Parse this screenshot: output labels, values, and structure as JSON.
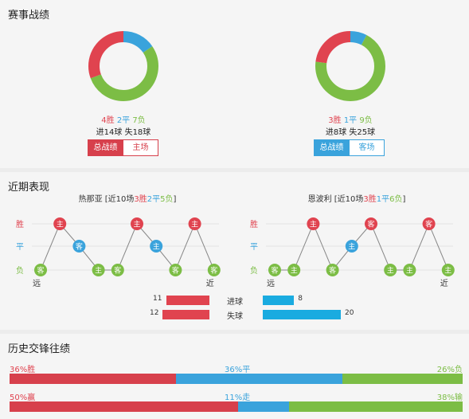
{
  "record": {
    "title": "赛事战绩",
    "teams": [
      {
        "win": 4,
        "draw": 2,
        "loss": 7,
        "win_label": "4胜",
        "draw_label": "2平",
        "loss_label": "7负",
        "goals_line": "进14球 失18球",
        "btn_total": "总战绩",
        "btn_venue": "主场",
        "accent": "#d7404c"
      },
      {
        "win": 3,
        "draw": 1,
        "loss": 9,
        "win_label": "3胜",
        "draw_label": "1平",
        "loss_label": "9负",
        "goals_line": "进8球 失25球",
        "btn_total": "总战绩",
        "btn_venue": "客场",
        "accent": "#3aa3dc"
      }
    ],
    "colors": {
      "win": "#e0434f",
      "draw": "#3aa3dc",
      "loss": "#7cbd45"
    }
  },
  "recent": {
    "title": "近期表现",
    "axis": {
      "win": "胜",
      "draw": "平",
      "loss": "负",
      "far": "远",
      "near": "近"
    },
    "teams": [
      {
        "title_prefix": "热那亚 [近10场",
        "win_part": "3胜",
        "draw_part": "2平",
        "loss_part": "5负",
        "title_suffix": "]",
        "results": [
          "负",
          "胜",
          "平",
          "负",
          "负",
          "胜",
          "平",
          "负",
          "胜",
          "负"
        ],
        "venues": [
          "客",
          "主",
          "客",
          "主",
          "客",
          "主",
          "主",
          "客",
          "主",
          "客"
        ]
      },
      {
        "title_prefix": "恩波利 [近10场",
        "win_part": "3胜",
        "draw_part": "1平",
        "loss_part": "6负",
        "title_suffix": "]",
        "results": [
          "负",
          "负",
          "胜",
          "负",
          "平",
          "胜",
          "负",
          "负",
          "胜",
          "负"
        ],
        "venues": [
          "客",
          "主",
          "主",
          "客",
          "主",
          "客",
          "主",
          "主",
          "客",
          "主"
        ]
      }
    ],
    "compare": {
      "goals_label": "进球",
      "conceded_label": "失球",
      "home_goals": 11,
      "away_goals": 8,
      "home_conceded": 12,
      "away_conceded": 20
    }
  },
  "history": {
    "title": "历史交锋往绩",
    "row1": {
      "left_label": "36%胜",
      "mid_label": "36%平",
      "right_label": "26%负",
      "left": 36,
      "mid": 36,
      "right": 26
    },
    "row2": {
      "left_label": "50%赢",
      "mid_label": "11%走",
      "right_label": "38%输",
      "left": 50,
      "mid": 11,
      "right": 38
    }
  }
}
